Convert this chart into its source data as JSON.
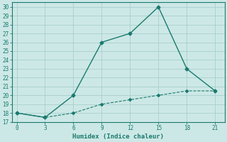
{
  "x": [
    0,
    3,
    6,
    9,
    12,
    15,
    18,
    21
  ],
  "y_main": [
    18,
    17.5,
    20,
    26,
    27,
    30,
    23,
    20.5
  ],
  "y_ref": [
    18,
    17.5,
    18,
    19,
    19.5,
    20,
    20.5,
    20.5
  ],
  "line_color": "#1a7a6e",
  "bg_color": "#cce8e6",
  "grid_color": "#a8d0cd",
  "xlabel": "Humidex (Indice chaleur)",
  "xlim": [
    -0.5,
    22
  ],
  "ylim": [
    17,
    30.5
  ],
  "xticks": [
    0,
    3,
    6,
    9,
    12,
    15,
    18,
    21
  ],
  "yticks": [
    17,
    18,
    19,
    20,
    21,
    22,
    23,
    24,
    25,
    26,
    27,
    28,
    29,
    30
  ]
}
